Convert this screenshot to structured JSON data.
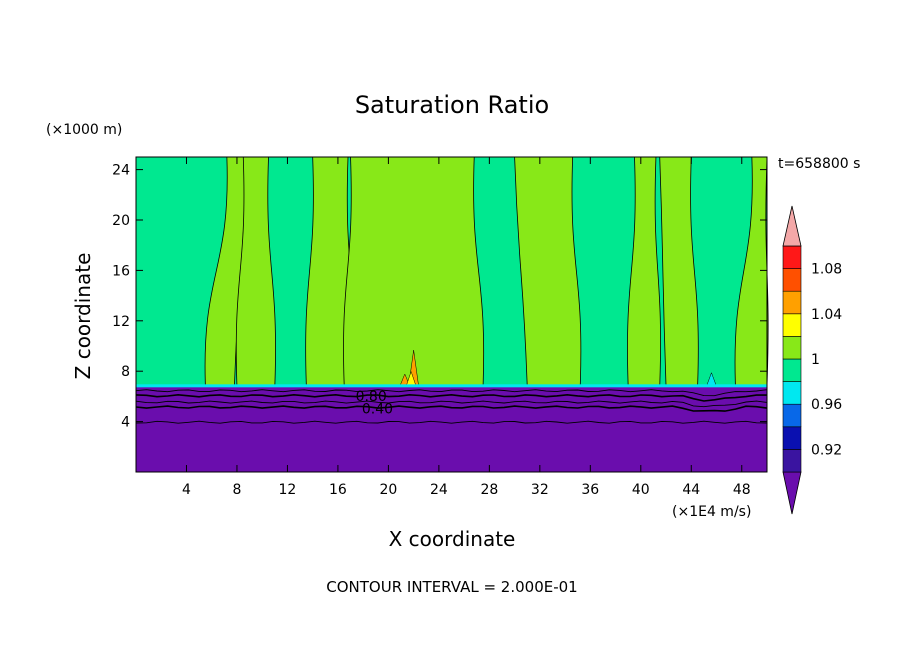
{
  "chart_data": {
    "type": "contour",
    "title": "Saturation Ratio",
    "xlabel": "X coordinate",
    "ylabel": "Z coordinate",
    "x_units": "(×1E4 m/s)",
    "y_units": "(×1000 m)",
    "time_label": "t=658800 s",
    "footer": "CONTOUR INTERVAL = 2.000E-01",
    "xlim": [
      0,
      50
    ],
    "ylim": [
      0,
      25
    ],
    "x_ticks": [
      4,
      8,
      12,
      16,
      20,
      24,
      28,
      32,
      36,
      40,
      44,
      48
    ],
    "y_ticks": [
      4,
      8,
      12,
      16,
      20,
      24
    ],
    "contour_labels": [
      {
        "text": "0.80",
        "x": 17.4,
        "z": 6.1
      },
      {
        "text": "0.40",
        "x": 17.9,
        "z": 5.1
      }
    ],
    "colorbar": {
      "colors": [
        "#6a0dad",
        "#3a14a0",
        "#0a10b0",
        "#0868e8",
        "#00e8f0",
        "#00e890",
        "#88e818",
        "#ffff00",
        "#ffa000",
        "#ff5000",
        "#ff1818",
        "#f4a8a8"
      ],
      "tick_labels": [
        "0.92",
        "0.96",
        "1",
        "1.04",
        "1.08"
      ],
      "tick_values": [
        0.92,
        0.96,
        1.0,
        1.04,
        1.08
      ],
      "vmin": 0.9,
      "step": 0.02
    },
    "regions": {
      "surface_value": 0.5,
      "upper_background_value": 0.99,
      "moist_band_value": 1.01,
      "tropopause_z": 6.8
    },
    "moist_bands": [
      [
        5.5,
        7.8,
        8.8,
        7.2
      ],
      [
        8.0,
        11.0,
        10.5,
        8.5
      ],
      [
        13.5,
        17.2,
        16.8,
        14.0
      ],
      [
        16.5,
        27.5,
        26.8,
        17.0
      ],
      [
        31.0,
        35.2,
        34.6,
        30.0
      ],
      [
        39.0,
        41.5,
        41.2,
        39.5
      ],
      [
        42.0,
        44.5,
        44.0,
        41.5
      ],
      [
        47.5,
        50.0,
        50.0,
        48.8
      ]
    ],
    "moist_spots": [
      {
        "x": 21.3,
        "z": 7.3,
        "value": 1.05
      },
      {
        "x": 22.0,
        "z": 9.2,
        "value": 1.05
      },
      {
        "x": 21.8,
        "z": 7.5,
        "value": 1.03
      },
      {
        "x": 45.6,
        "z": 7.4,
        "value": 0.97
      }
    ]
  }
}
